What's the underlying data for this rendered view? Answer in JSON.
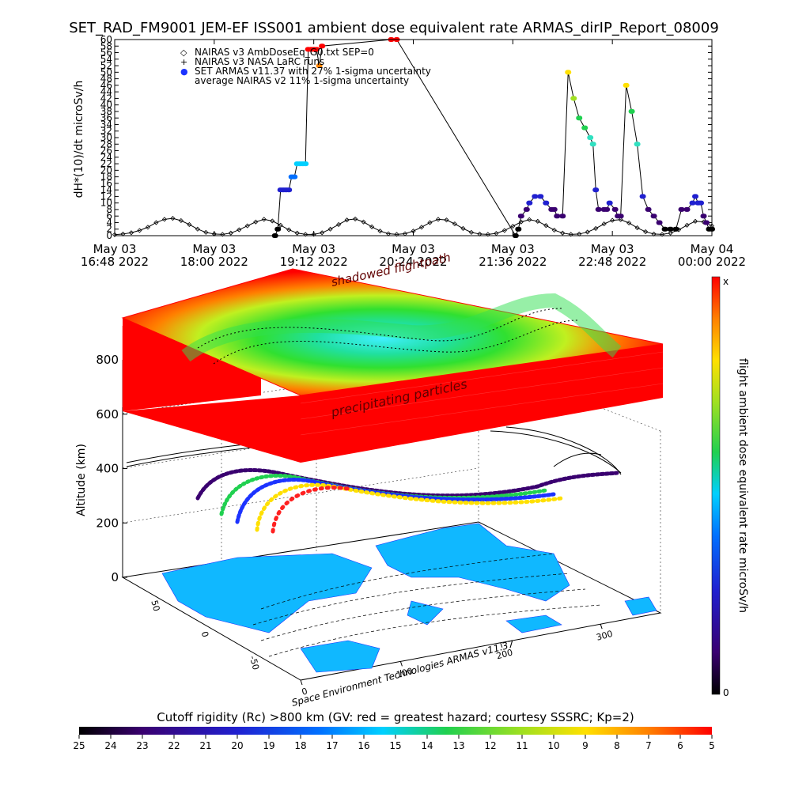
{
  "title": "SET_RAD_FM9001  JEM-EF ISS001 ambient dose equivalent rate ARMAS_dirIP_Report_08009",
  "chart_data": [
    {
      "type": "line",
      "ylabel": "dH*(10)/dt microSv/h",
      "ylim": [
        0,
        60
      ],
      "y_ticks": [
        0,
        2,
        4,
        6,
        8,
        10,
        12,
        14,
        16,
        18,
        20,
        22,
        24,
        26,
        28,
        30,
        32,
        34,
        36,
        38,
        40,
        42,
        44,
        46,
        48,
        50,
        52,
        54,
        56,
        58,
        60
      ],
      "xlim_minutes": [
        0,
        432
      ],
      "x_ticks": [
        {
          "m": 0,
          "top": "May 03",
          "bottom": "16:48 2022"
        },
        {
          "m": 72,
          "top": "May 03",
          "bottom": "18:00 2022"
        },
        {
          "m": 144,
          "top": "May 03",
          "bottom": "19:12 2022"
        },
        {
          "m": 216,
          "top": "May 03",
          "bottom": "20:24 2022"
        },
        {
          "m": 288,
          "top": "May 03",
          "bottom": "21:36 2022"
        },
        {
          "m": 360,
          "top": "May 03",
          "bottom": "22:48 2022"
        },
        {
          "m": 432,
          "top": "May 04",
          "bottom": "00:00 2022"
        }
      ],
      "legend": [
        {
          "symbol": "◇",
          "label": "NAIRAS v3 AmbDoseEq_G0.txt SEP=0"
        },
        {
          "symbol": "+",
          "label": "NAIRAS v3 NASA LaRC runs"
        },
        {
          "symbol": "●",
          "label": "SET ARMAS v11.37 with 27% 1-sigma uncertainty",
          "color": "#1c33ff"
        },
        {
          "symbol": "",
          "label": "average NAIRAS v2 11% 1-sigma uncertainty"
        }
      ],
      "series": [
        {
          "marker": "diamond",
          "x": [
            0,
            6,
            12,
            18,
            24,
            30,
            36,
            42,
            48,
            54,
            60,
            66,
            72,
            78,
            84,
            90,
            96,
            102,
            108,
            114,
            120,
            126,
            132,
            138,
            144,
            150,
            156,
            162,
            168,
            174,
            180,
            186,
            192,
            198,
            204,
            210,
            216,
            222,
            228,
            234,
            240,
            246,
            252,
            258,
            264,
            270,
            276,
            282,
            288,
            294,
            300,
            306,
            312,
            318,
            324,
            330,
            336,
            342,
            348,
            354,
            360,
            366,
            372,
            378,
            384,
            390,
            396,
            402,
            408,
            414,
            420,
            426,
            432
          ],
          "y": [
            0.3,
            0.5,
            0.9,
            1.6,
            2.6,
            4.0,
            5.0,
            5.3,
            4.6,
            3.4,
            2.0,
            1.0,
            0.5,
            0.4,
            0.8,
            1.8,
            3.0,
            4.2,
            5.0,
            4.5,
            3.2,
            1.8,
            0.8,
            0.4,
            0.4,
            0.9,
            2.0,
            3.4,
            4.8,
            5.1,
            4.2,
            2.7,
            1.4,
            0.6,
            0.4,
            0.6,
            1.4,
            2.6,
            4.0,
            5.0,
            4.8,
            3.6,
            2.2,
            1.0,
            0.5,
            0.4,
            0.7,
            1.6,
            2.9,
            4.2,
            4.9,
            4.4,
            3.1,
            1.7,
            0.8,
            0.4,
            0.5,
            1.1,
            2.2,
            3.6,
            4.7,
            4.9,
            3.9,
            2.4,
            1.2,
            0.5,
            0.4,
            0.8,
            1.8,
            3.2,
            4.4,
            4.2,
            3.0
          ]
        },
        {
          "marker": "dot",
          "x": [
            116,
            118,
            120,
            122,
            124,
            126,
            128,
            130,
            132,
            134,
            136,
            138,
            140,
            142,
            144,
            146,
            148,
            150,
            200,
            204,
            290,
            292,
            294,
            298,
            300,
            304,
            308,
            312,
            316,
            318,
            320,
            324,
            328,
            332,
            336,
            340,
            344,
            346,
            348,
            350,
            354,
            356,
            358,
            362,
            364,
            366,
            370,
            374,
            378,
            382,
            386,
            390,
            394,
            398,
            402,
            406,
            410,
            414,
            418,
            420,
            422,
            424,
            426,
            428,
            430,
            432
          ],
          "y": [
            0,
            2,
            14,
            14,
            14,
            14,
            18,
            18,
            22,
            22,
            22,
            22,
            57,
            57,
            57,
            57,
            52,
            58,
            60,
            60,
            0,
            2,
            6,
            8,
            10,
            12,
            12,
            10,
            8,
            8,
            6,
            6,
            50,
            42,
            36,
            33,
            30,
            28,
            14,
            8,
            8,
            8,
            10,
            8,
            6,
            6,
            46,
            38,
            28,
            12,
            8,
            6,
            4,
            2,
            2,
            2,
            8,
            8,
            10,
            12,
            10,
            10,
            6,
            4,
            2,
            2
          ]
        }
      ]
    },
    {
      "type": "heatmap",
      "annotations": [
        "shadowed flightpath",
        "precipitating particles"
      ],
      "zlabel": "Altitude (km)",
      "z_ticks": [
        0,
        200,
        400,
        600,
        800
      ],
      "lat_ticks": [
        50,
        0,
        -50
      ],
      "lon_ticks": [
        0,
        100,
        200,
        300
      ],
      "colorbar_label": "flight ambient dose equivalent rate microSv/h",
      "colorbar_top": "x",
      "colorbar_bottom": "0",
      "credit": "Space Environment Technologies ARMAS v11.37"
    },
    {
      "type": "heatmap",
      "title": "Cutoff rigidity (Rc) >800 km (GV: red = greatest hazard; courtesy SSSRC; Kp=2)",
      "ticks": [
        "25",
        "24",
        "23",
        "22",
        "21",
        "20",
        "19",
        "18",
        "17",
        "16",
        "15",
        "14",
        "13",
        "12",
        "11",
        "10",
        "9",
        "8",
        "7",
        "6",
        "5"
      ]
    }
  ],
  "colors": {
    "rainbow": [
      "#000000",
      "#3a0070",
      "#2020d0",
      "#0070ff",
      "#00d0ff",
      "#30e0c0",
      "#20d050",
      "#a0e020",
      "#ffe000",
      "#ff8000",
      "#ff0000"
    ]
  }
}
